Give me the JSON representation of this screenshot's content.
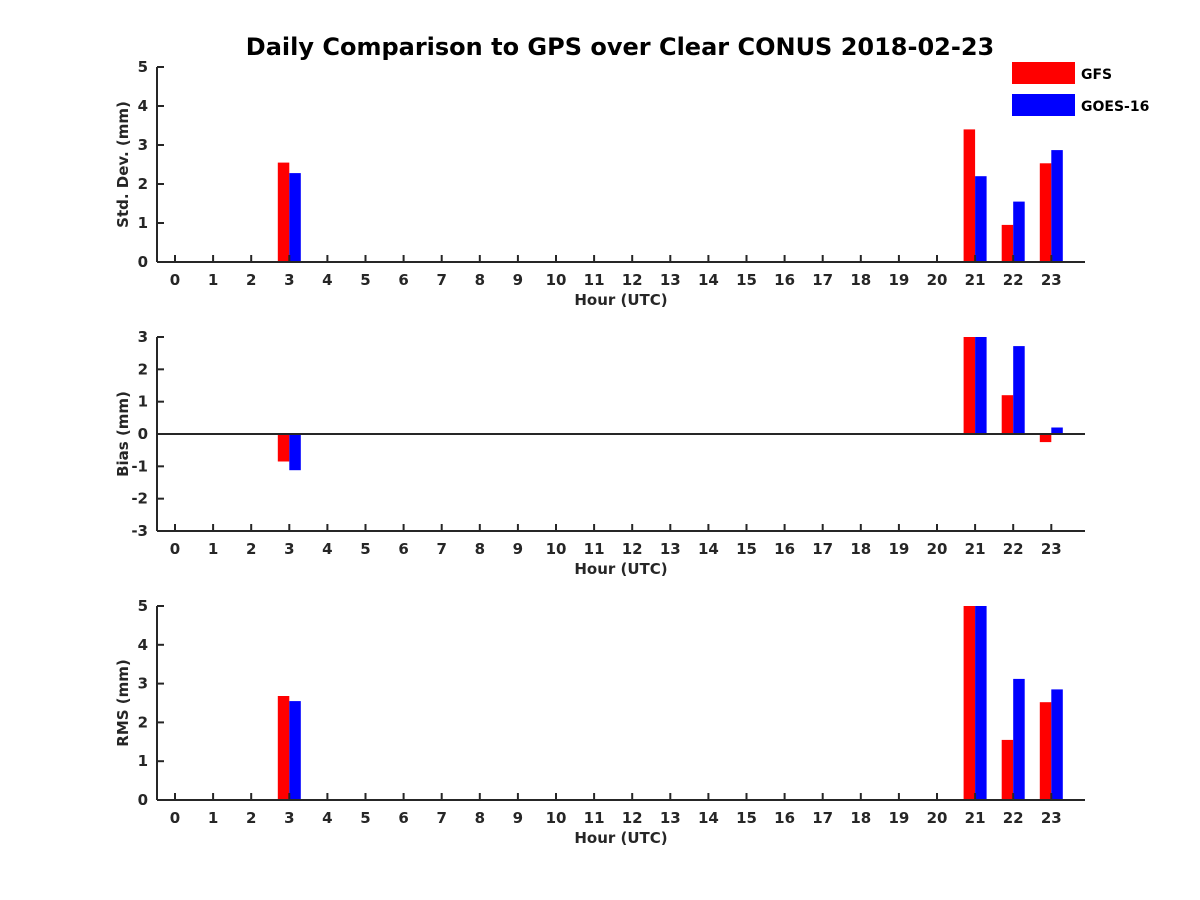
{
  "colors": {
    "GFS": "#ff0000",
    "GOES-16": "#0000ff",
    "axis": "#262626"
  },
  "chart_data": {
    "title": "Daily Comparison to GPS over Clear CONUS 2018-02-23",
    "legend": {
      "placement": "top-right",
      "entries": [
        "GFS",
        "GOES-16"
      ]
    },
    "panels": [
      {
        "type": "bar",
        "ylabel": "Std. Dev. (mm)",
        "xlabel": "Hour (UTC)",
        "ylim": [
          0,
          5
        ],
        "yticks": [
          0,
          1,
          2,
          3,
          4,
          5
        ],
        "grid": false,
        "categories": [
          "0",
          "1",
          "2",
          "3",
          "4",
          "5",
          "6",
          "7",
          "8",
          "9",
          "10",
          "11",
          "12",
          "13",
          "14",
          "15",
          "16",
          "17",
          "18",
          "19",
          "20",
          "21",
          "22",
          "23"
        ],
        "series": [
          {
            "name": "GFS",
            "values": [
              0,
              0,
              0,
              2.55,
              0,
              0,
              0,
              0,
              0,
              0,
              0,
              0,
              0,
              0,
              0,
              0,
              0,
              0,
              0,
              0,
              0,
              3.4,
              0.95,
              2.53
            ]
          },
          {
            "name": "GOES-16",
            "values": [
              0,
              0,
              0,
              2.28,
              0,
              0,
              0,
              0,
              0,
              0,
              0,
              0,
              0,
              0,
              0,
              0,
              0,
              0,
              0,
              0,
              0,
              2.2,
              1.55,
              2.87
            ]
          }
        ]
      },
      {
        "type": "bar",
        "ylabel": "Bias (mm)",
        "xlabel": "Hour (UTC)",
        "ylim": [
          -3,
          3
        ],
        "yticks": [
          -3,
          -2,
          -1,
          0,
          1,
          2,
          3
        ],
        "zero_line": true,
        "grid": false,
        "categories": [
          "0",
          "1",
          "2",
          "3",
          "4",
          "5",
          "6",
          "7",
          "8",
          "9",
          "10",
          "11",
          "12",
          "13",
          "14",
          "15",
          "16",
          "17",
          "18",
          "19",
          "20",
          "21",
          "22",
          "23"
        ],
        "series": [
          {
            "name": "GFS",
            "values": [
              0,
              0,
              0,
              -0.85,
              0,
              0,
              0,
              0,
              0,
              0,
              0,
              0,
              0,
              0,
              0,
              0,
              0,
              0,
              0,
              0,
              0,
              3.0,
              1.2,
              -0.25
            ]
          },
          {
            "name": "GOES-16",
            "values": [
              0,
              0,
              0,
              -1.12,
              0,
              0,
              0,
              0,
              0,
              0,
              0,
              0,
              0,
              0,
              0,
              0,
              0,
              0,
              0,
              0,
              0,
              3.0,
              2.72,
              0.2
            ]
          }
        ]
      },
      {
        "type": "bar",
        "ylabel": "RMS (mm)",
        "xlabel": "Hour (UTC)",
        "ylim": [
          0,
          5
        ],
        "yticks": [
          0,
          1,
          2,
          3,
          4,
          5
        ],
        "grid": false,
        "categories": [
          "0",
          "1",
          "2",
          "3",
          "4",
          "5",
          "6",
          "7",
          "8",
          "9",
          "10",
          "11",
          "12",
          "13",
          "14",
          "15",
          "16",
          "17",
          "18",
          "19",
          "20",
          "21",
          "22",
          "23"
        ],
        "series": [
          {
            "name": "GFS",
            "values": [
              0,
              0,
              0,
              2.68,
              0,
              0,
              0,
              0,
              0,
              0,
              0,
              0,
              0,
              0,
              0,
              0,
              0,
              0,
              0,
              0,
              0,
              5.0,
              1.55,
              2.52
            ]
          },
          {
            "name": "GOES-16",
            "values": [
              0,
              0,
              0,
              2.55,
              0,
              0,
              0,
              0,
              0,
              0,
              0,
              0,
              0,
              0,
              0,
              0,
              0,
              0,
              0,
              0,
              0,
              5.0,
              3.12,
              2.85
            ]
          }
        ]
      }
    ]
  }
}
